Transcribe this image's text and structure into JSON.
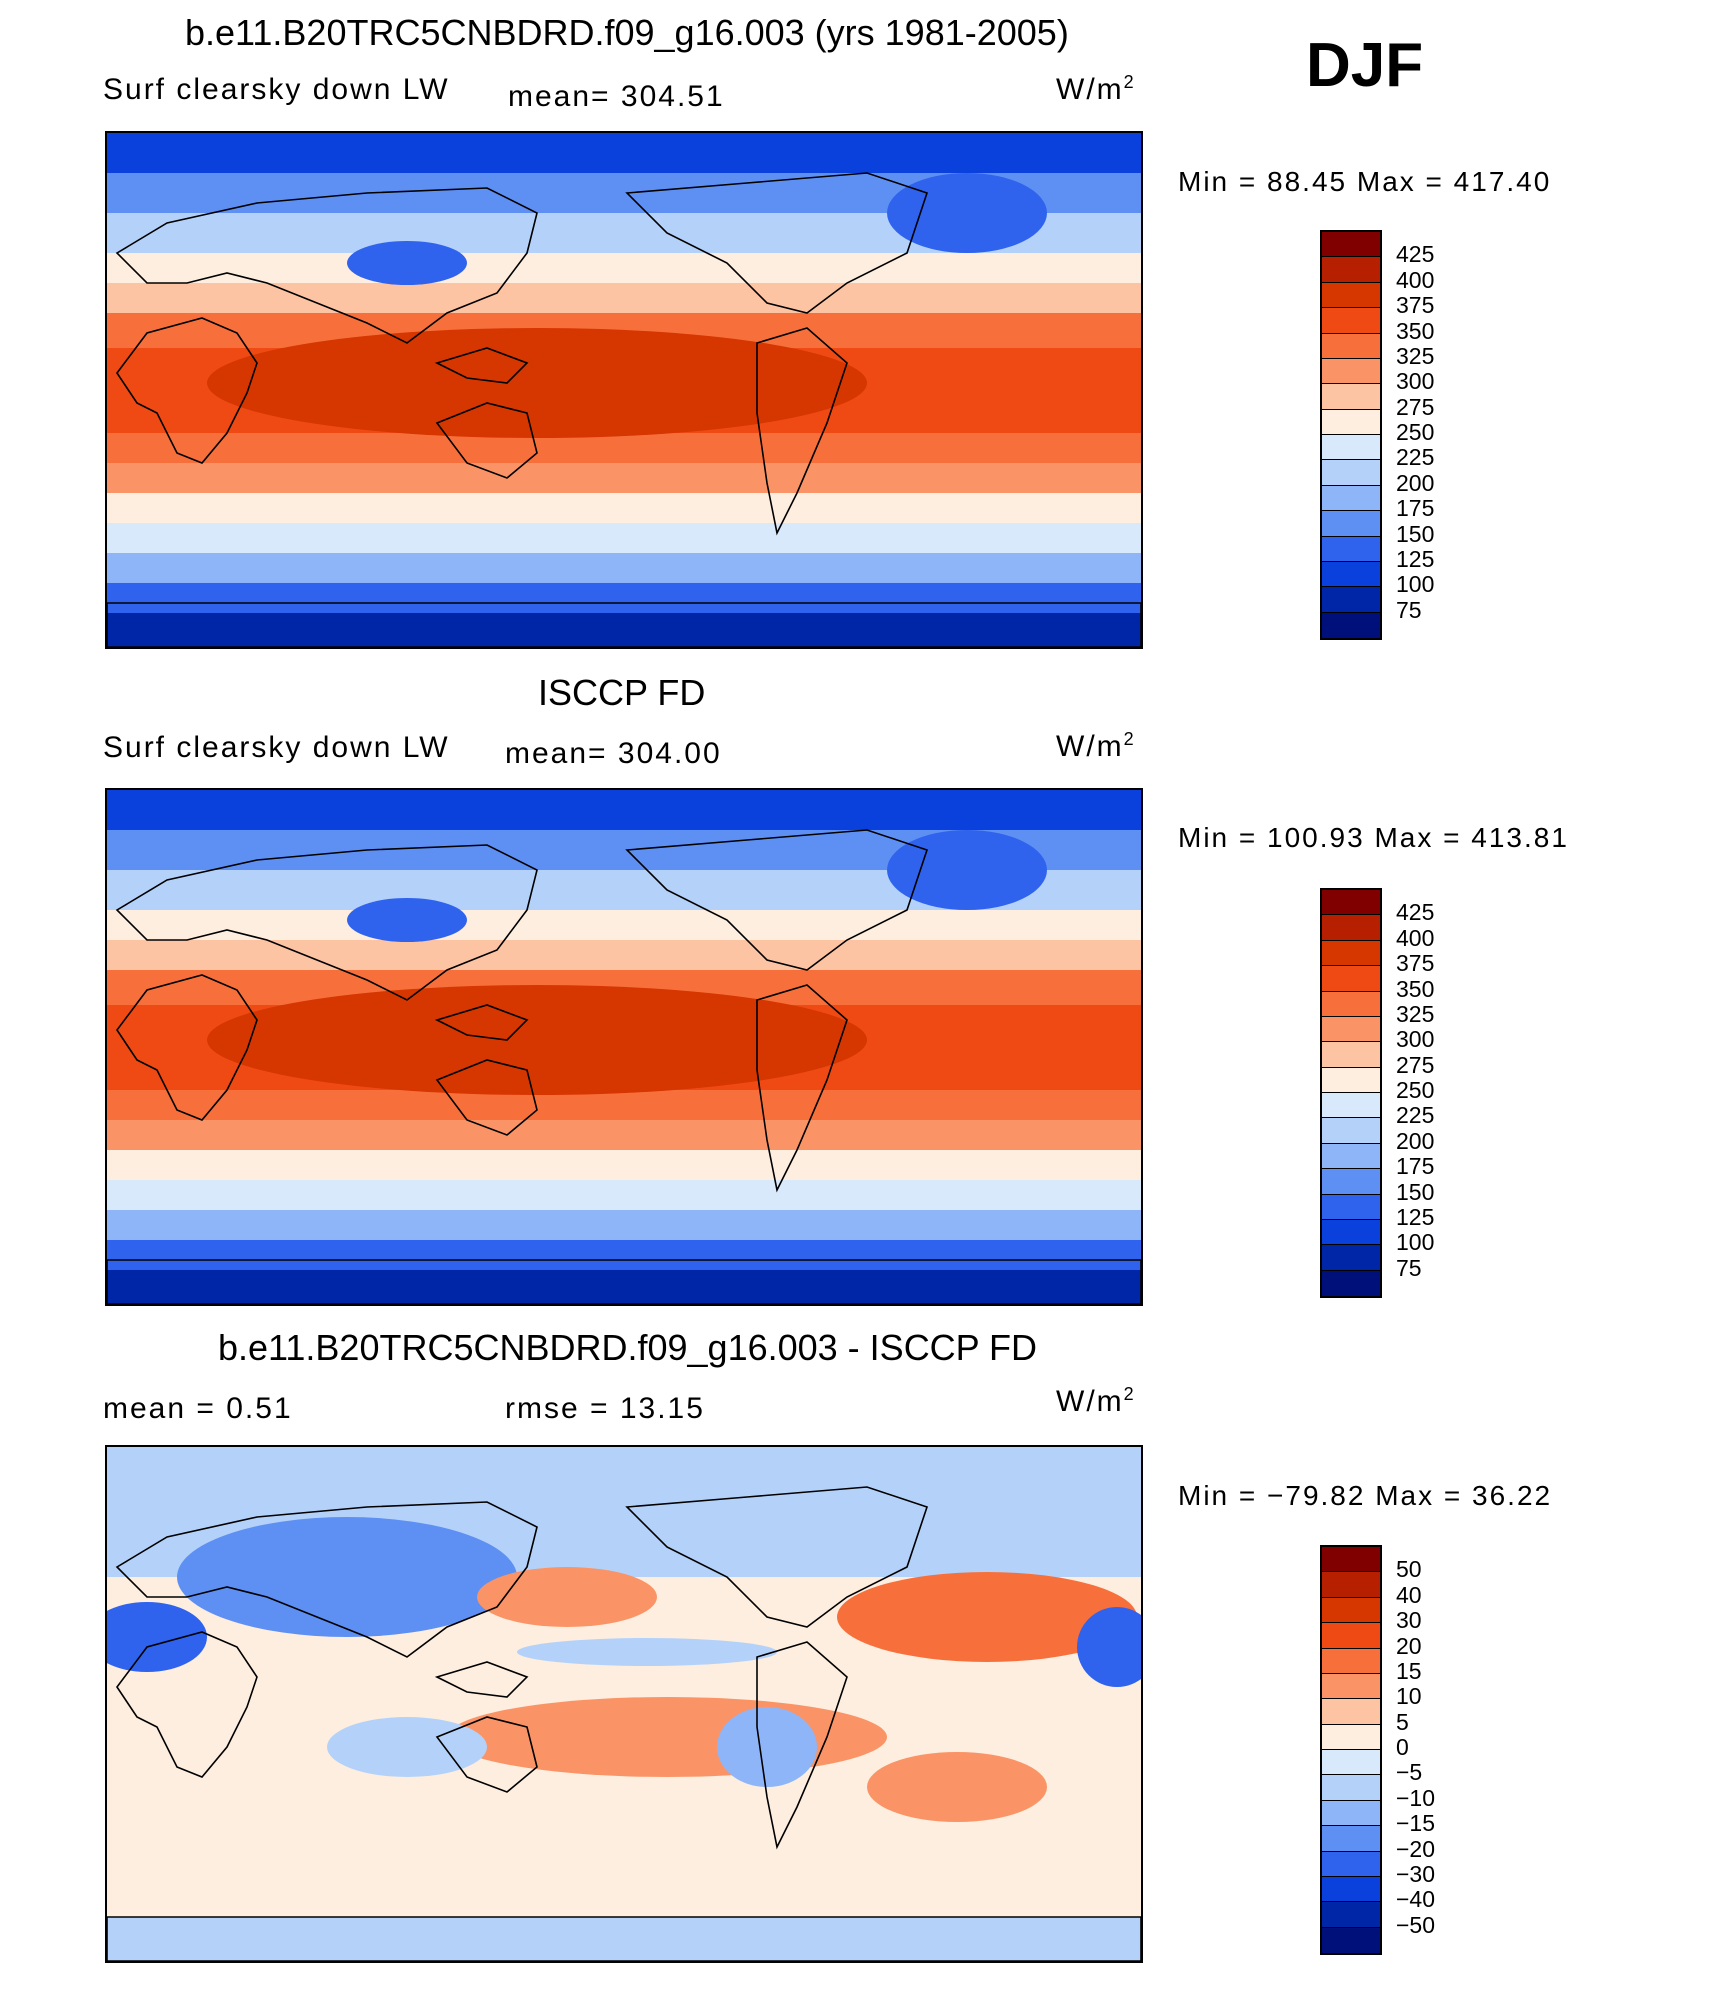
{
  "season": "DJF",
  "panels": [
    {
      "title": "b.e11.B20TRC5CNBDRD.f09_g16.003 (yrs 1981-2005)",
      "left_label": "Surf  clearsky  down  LW",
      "center_label": "mean=  304.51",
      "units_base": "W/m",
      "units_exp": "2",
      "minmax": "Min  =    88.45  Max  =  417.40",
      "field": "model",
      "colorbar": {
        "ticks": [
          "425",
          "400",
          "375",
          "350",
          "325",
          "300",
          "275",
          "250",
          "225",
          "200",
          "175",
          "150",
          "125",
          "100",
          "75"
        ],
        "colors": [
          "#800000",
          "#b62000",
          "#d63600",
          "#ef4a14",
          "#f7703c",
          "#fa9466",
          "#fdc4a4",
          "#fdeedf",
          "#d7e9fb",
          "#b4d2f9",
          "#8eb5f7",
          "#5e90f4",
          "#2f63ee",
          "#0a40db",
          "#0026a8",
          "#00107a"
        ]
      }
    },
    {
      "title": "ISCCP FD",
      "left_label": "Surf  clearsky  down  LW",
      "center_label": "mean=  304.00",
      "units_base": "W/m",
      "units_exp": "2",
      "minmax": "Min  =  100.93  Max  =  413.81",
      "field": "obs",
      "colorbar": {
        "ticks": [
          "425",
          "400",
          "375",
          "350",
          "325",
          "300",
          "275",
          "250",
          "225",
          "200",
          "175",
          "150",
          "125",
          "100",
          "75"
        ],
        "colors": [
          "#800000",
          "#b62000",
          "#d63600",
          "#ef4a14",
          "#f7703c",
          "#fa9466",
          "#fdc4a4",
          "#fdeedf",
          "#d7e9fb",
          "#b4d2f9",
          "#8eb5f7",
          "#5e90f4",
          "#2f63ee",
          "#0a40db",
          "#0026a8",
          "#00107a"
        ]
      }
    },
    {
      "title": "b.e11.B20TRC5CNBDRD.f09_g16.003 - ISCCP FD",
      "left_label": "mean  =      0.51",
      "center_label": "rmse  =     13.15",
      "units_base": "W/m",
      "units_exp": "2",
      "minmax": "Min  =  −79.82  Max  =     36.22",
      "field": "diff",
      "colorbar": {
        "ticks": [
          "50",
          "40",
          "30",
          "20",
          "15",
          "10",
          "5",
          "0",
          "−5",
          "−10",
          "−15",
          "−20",
          "−30",
          "−40",
          "−50"
        ],
        "colors": [
          "#800000",
          "#b62000",
          "#d63600",
          "#ef4a14",
          "#f7703c",
          "#fa9466",
          "#fdc4a4",
          "#fdeedf",
          "#d7e9fb",
          "#b4d2f9",
          "#8eb5f7",
          "#5e90f4",
          "#2f63ee",
          "#0a40db",
          "#0026a8",
          "#00107a"
        ]
      }
    }
  ]
}
